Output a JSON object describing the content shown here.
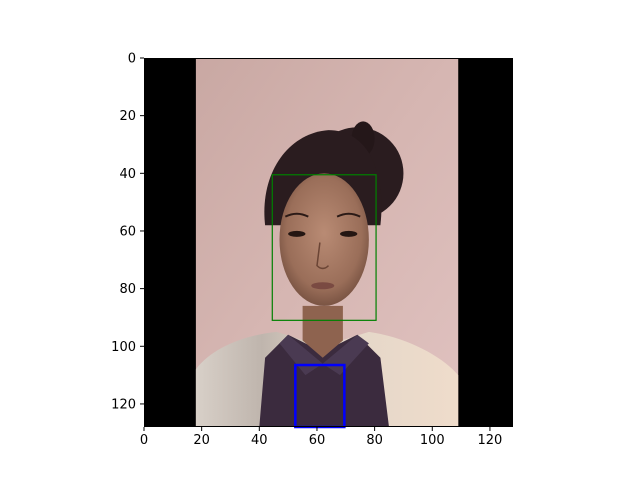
{
  "chart_data": {
    "type": "image",
    "xlim": [
      0,
      128
    ],
    "ylim": [
      128,
      0
    ],
    "x_ticks": [
      0,
      20,
      40,
      60,
      80,
      100,
      120
    ],
    "y_ticks": [
      0,
      20,
      40,
      60,
      80,
      100,
      120
    ],
    "x_tick_labels": [
      "0",
      "20",
      "40",
      "60",
      "80",
      "100",
      "120"
    ],
    "y_tick_labels": [
      "0",
      "20",
      "40",
      "60",
      "80",
      "100",
      "120"
    ],
    "grid": false,
    "image": {
      "content": "portrait photograph, letterboxed with black side bars",
      "photo_x_range": [
        18,
        109
      ],
      "background_color": "#d9b7b3",
      "sidebar_color": "#000000"
    },
    "boxes": [
      {
        "label": "face",
        "x_range": [
          44.5,
          80.5
        ],
        "y_range": [
          40.5,
          91
        ],
        "color": "#008000",
        "line": "thin"
      },
      {
        "label": "lower-region",
        "x_range": [
          52.5,
          69.5
        ],
        "y_range": [
          106.5,
          128
        ],
        "color": "#0000ff",
        "line": "thick"
      }
    ]
  }
}
